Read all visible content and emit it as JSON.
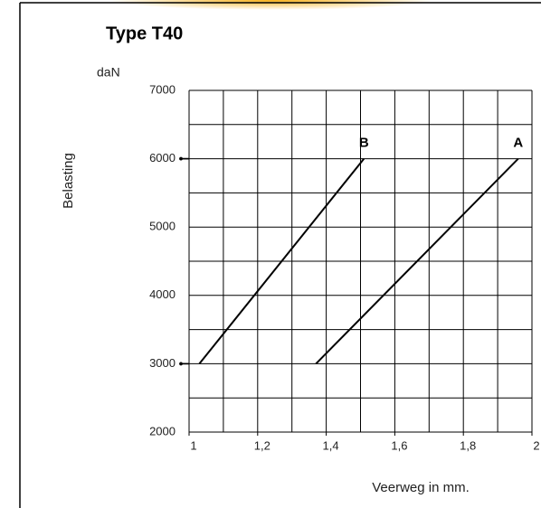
{
  "chart_data": {
    "type": "line",
    "title": "Type T40",
    "unit_label": "daN",
    "ylabel": "Belasting",
    "xlabel": "Veerweg in mm.",
    "series": [
      {
        "name": "A",
        "color": "#000000",
        "x": [
          1.37,
          1.96
        ],
        "values": [
          3000,
          6000
        ]
      },
      {
        "name": "B",
        "color": "#000000",
        "x": [
          1.03,
          1.51
        ],
        "values": [
          3000,
          6000
        ]
      }
    ],
    "xlim": [
      1,
      2
    ],
    "xticks": [
      1,
      {
        "value": 1.2,
        "label": "1,2"
      },
      {
        "value": 1.4,
        "label": "1,4"
      },
      {
        "value": 1.6,
        "label": "1,6"
      },
      {
        "value": 1.8,
        "label": "1,8"
      },
      2
    ],
    "ylim": [
      2000,
      7000
    ],
    "yticks": [
      2000,
      3000,
      4000,
      5000,
      6000,
      7000
    ],
    "xgrid": [
      1,
      1.1,
      1.2,
      1.3,
      1.4,
      1.5,
      1.6,
      1.7,
      1.8,
      1.9,
      2
    ],
    "ygrid": [
      2000,
      2500,
      3000,
      3500,
      4000,
      4500,
      5000,
      5500,
      6000,
      6500,
      7000
    ],
    "grid": true
  }
}
